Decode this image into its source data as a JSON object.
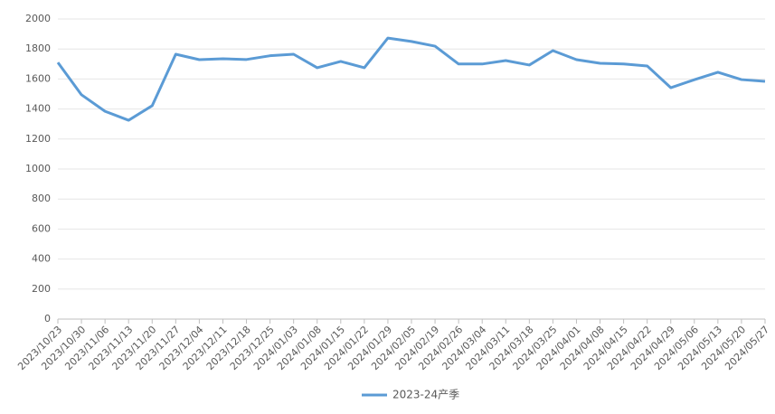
{
  "chart_data": {
    "type": "line",
    "categories": [
      "2023/10/23",
      "2023/10/30",
      "2023/11/06",
      "2023/11/13",
      "2023/11/20",
      "2023/11/27",
      "2023/12/04",
      "2023/12/11",
      "2023/12/18",
      "2023/12/25",
      "2024/01/03",
      "2024/01/08",
      "2024/01/15",
      "2024/01/22",
      "2024/01/29",
      "2024/02/05",
      "2024/02/19",
      "2024/02/26",
      "2024/03/04",
      "2024/03/11",
      "2024/03/18",
      "2024/03/25",
      "2024/04/01",
      "2024/04/08",
      "2024/04/15",
      "2024/04/22",
      "2024/04/29",
      "2024/05/06",
      "2024/05/13",
      "2024/05/20",
      "2024/05/27"
    ],
    "series": [
      {
        "name": "2023-24产季",
        "color": "#5b9bd5",
        "values": [
          1710,
          1495,
          1385,
          1325,
          1422,
          1765,
          1729,
          1735,
          1730,
          1755,
          1765,
          1675,
          1717,
          1675,
          1873,
          1850,
          1819,
          1700,
          1700,
          1723,
          1693,
          1789,
          1729,
          1705,
          1700,
          1687,
          1542,
          1595,
          1645,
          1596,
          1584
        ]
      }
    ],
    "ylim": [
      0,
      2000
    ],
    "yticks": [
      0,
      200,
      400,
      600,
      800,
      1000,
      1200,
      1400,
      1600,
      1800,
      2000
    ],
    "grid": true,
    "legend": "bottom"
  }
}
